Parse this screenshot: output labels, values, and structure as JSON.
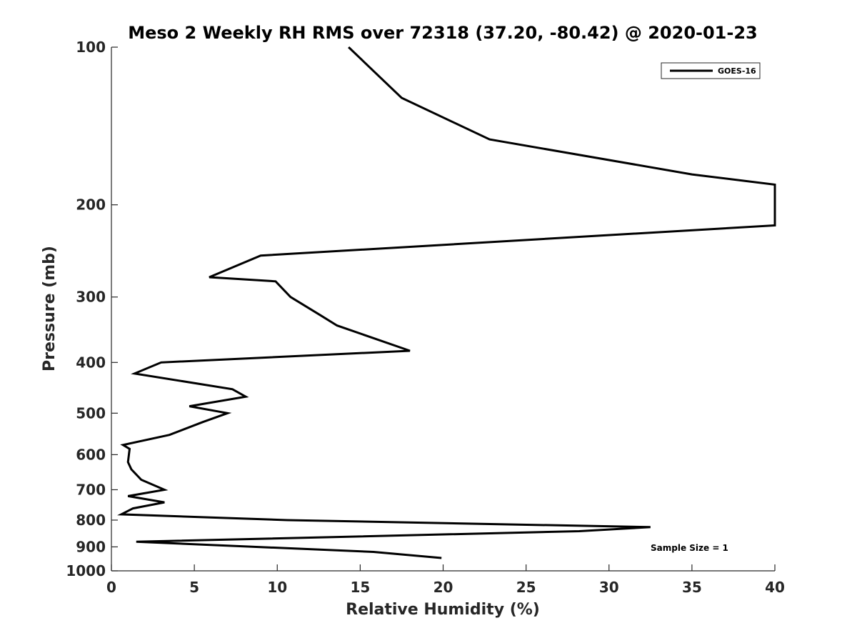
{
  "chart_data": {
    "type": "line",
    "title": "Meso 2 Weekly RH RMS over 72318 (37.20, -80.42) @ 2020-01-23",
    "xlabel": "Relative Humidity (%)",
    "ylabel": "Pressure (mb)",
    "xlim": [
      0,
      40
    ],
    "ylim": [
      100,
      1000
    ],
    "y_scale": "log",
    "y_reversed": true,
    "x_ticks": [
      0,
      5,
      10,
      15,
      20,
      25,
      30,
      35,
      40
    ],
    "y_ticks": [
      100,
      200,
      300,
      400,
      500,
      600,
      700,
      800,
      900,
      1000
    ],
    "grid": false,
    "legend_position": "top-right",
    "annotation": "Sample Size = 1",
    "series": [
      {
        "name": "GOES-16",
        "color": "#000000",
        "points": [
          {
            "x": 14.3,
            "y": 100
          },
          {
            "x": 17.5,
            "y": 125
          },
          {
            "x": 22.8,
            "y": 150
          },
          {
            "x": 35.0,
            "y": 175
          },
          {
            "x": 40.0,
            "y": 183
          },
          {
            "x": 40.0,
            "y": 219
          },
          {
            "x": 9.0,
            "y": 250
          },
          {
            "x": 5.9,
            "y": 275
          },
          {
            "x": 9.9,
            "y": 280
          },
          {
            "x": 10.8,
            "y": 300
          },
          {
            "x": 12.6,
            "y": 325
          },
          {
            "x": 13.6,
            "y": 340
          },
          {
            "x": 18.0,
            "y": 380
          },
          {
            "x": 3.0,
            "y": 400
          },
          {
            "x": 1.4,
            "y": 420
          },
          {
            "x": 7.3,
            "y": 450
          },
          {
            "x": 8.1,
            "y": 465
          },
          {
            "x": 4.7,
            "y": 485
          },
          {
            "x": 7.0,
            "y": 500
          },
          {
            "x": 5.5,
            "y": 520
          },
          {
            "x": 3.5,
            "y": 550
          },
          {
            "x": 0.7,
            "y": 575
          },
          {
            "x": 1.1,
            "y": 585
          },
          {
            "x": 1.0,
            "y": 620
          },
          {
            "x": 1.2,
            "y": 640
          },
          {
            "x": 1.8,
            "y": 670
          },
          {
            "x": 3.2,
            "y": 700
          },
          {
            "x": 1.0,
            "y": 720
          },
          {
            "x": 3.2,
            "y": 740
          },
          {
            "x": 1.3,
            "y": 760
          },
          {
            "x": 0.6,
            "y": 780
          },
          {
            "x": 10.6,
            "y": 800
          },
          {
            "x": 32.5,
            "y": 825
          },
          {
            "x": 28.2,
            "y": 840
          },
          {
            "x": 1.5,
            "y": 880
          },
          {
            "x": 15.8,
            "y": 920
          },
          {
            "x": 19.9,
            "y": 945
          }
        ]
      }
    ]
  }
}
